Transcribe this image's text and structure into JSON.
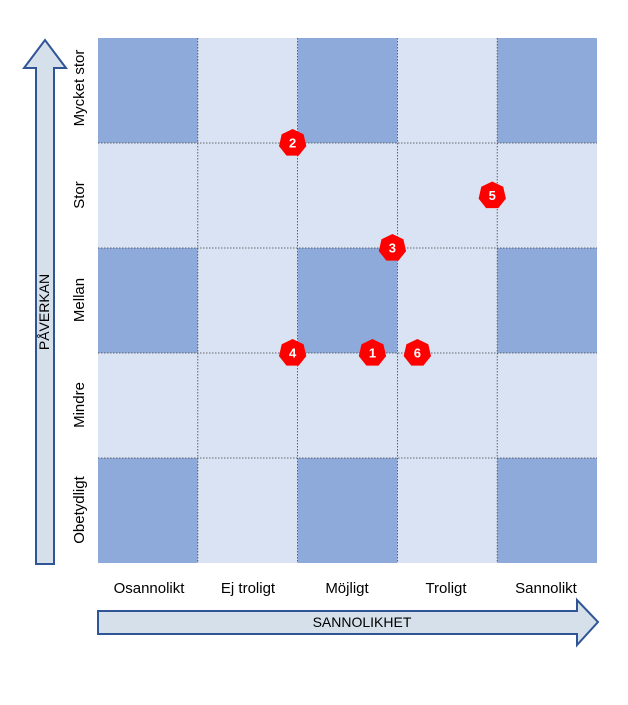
{
  "x_axis": {
    "title": "SANNOLIKHET",
    "labels": [
      "Osannolikt",
      "Ej troligt",
      "Möjligt",
      "Troligt",
      "Sannolikt"
    ]
  },
  "y_axis": {
    "title": "PÅVERKAN",
    "labels": [
      "Obetydligt",
      "Mindre",
      "Mellan",
      "Stor",
      "Mycket stor"
    ]
  },
  "colors": {
    "dark_cell": "#8eaadb",
    "light_cell": "#dae3f3",
    "arrow_fill": "#d6e0ea",
    "arrow_stroke": "#2f5597",
    "marker": "#ff0000"
  },
  "chart_data": {
    "type": "scatter",
    "grid": "5x5 risk matrix",
    "x_categories": [
      "Osannolikt",
      "Ej troligt",
      "Möjligt",
      "Troligt",
      "Sannolikt"
    ],
    "y_categories": [
      "Obetydligt",
      "Mindre",
      "Mellan",
      "Stor",
      "Mycket stor"
    ],
    "xlabel": "SANNOLIKHET",
    "ylabel": "PÅVERKAN",
    "points": [
      {
        "label": "1",
        "x": 3.25,
        "y": 2.5
      },
      {
        "label": "2",
        "x": 2.45,
        "y": 4.5
      },
      {
        "label": "3",
        "x": 3.45,
        "y": 3.5
      },
      {
        "label": "4",
        "x": 2.45,
        "y": 2.5
      },
      {
        "label": "5",
        "x": 4.45,
        "y": 4.0
      },
      {
        "label": "6",
        "x": 3.7,
        "y": 2.5
      }
    ]
  }
}
